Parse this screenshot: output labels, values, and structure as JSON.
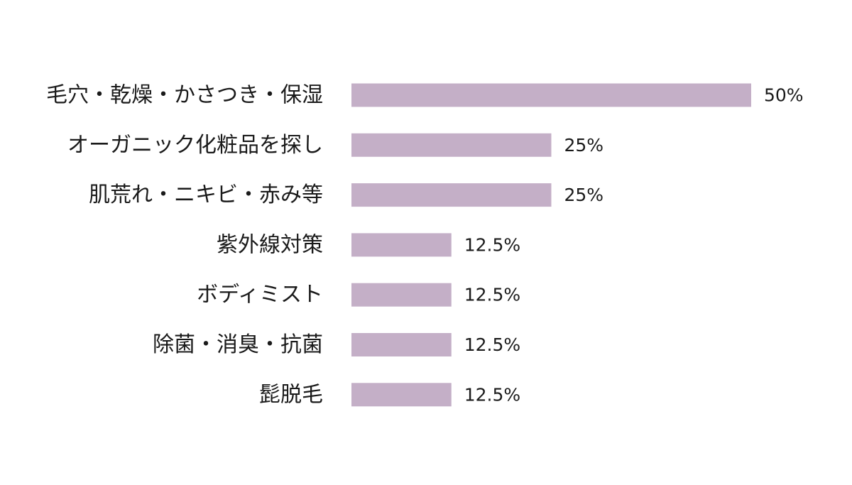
{
  "chart_data": {
    "type": "bar",
    "orientation": "horizontal",
    "categories": [
      "毛穴・乾燥・かさつき・保湿",
      "オーガニック化粧品を探し",
      "肌荒れ・ニキビ・赤み等",
      "紫外線対策",
      "ボディミスト",
      "除菌・消臭・抗菌",
      "髭脱毛"
    ],
    "values": [
      50,
      25,
      25,
      12.5,
      12.5,
      12.5,
      12.5
    ],
    "value_labels": [
      "50%",
      "25%",
      "25%",
      "12.5%",
      "12.5%",
      "12.5%",
      "12.5%"
    ],
    "xlim": [
      0,
      50
    ],
    "unit": "%",
    "title": "",
    "xlabel": "",
    "ylabel": "",
    "grid": false,
    "legend": "none",
    "bar_color": "#c4afc7"
  }
}
